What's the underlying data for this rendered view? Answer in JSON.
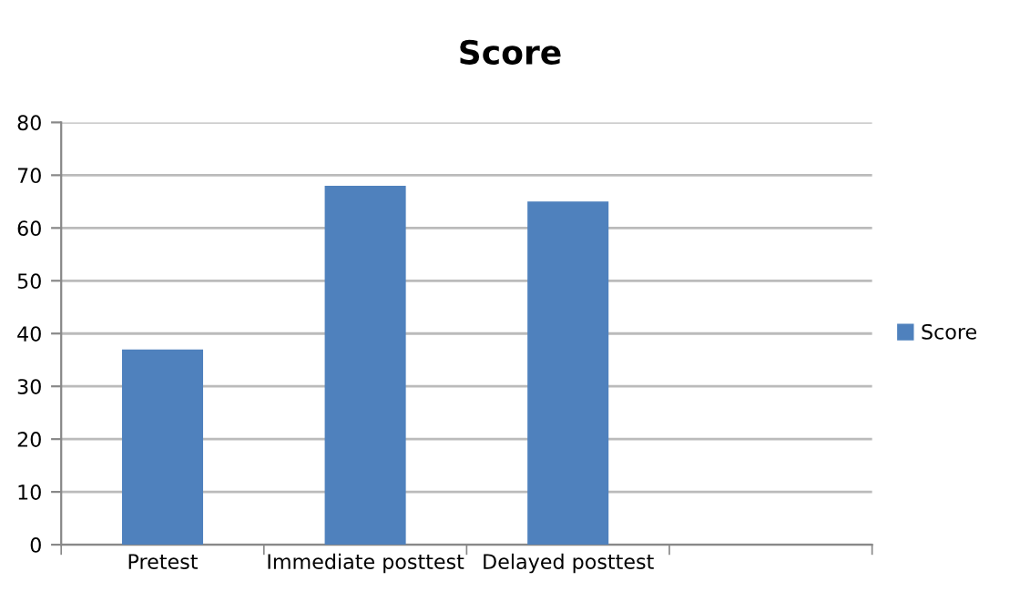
{
  "chart_data": {
    "type": "bar",
    "title": "Score",
    "categories": [
      "Pretest",
      "Immediate posttest",
      "Delayed posttest",
      null
    ],
    "series": [
      {
        "name": "Score",
        "color": "#4f81bd",
        "values": [
          37,
          68,
          65,
          null
        ]
      }
    ],
    "ylim": [
      0,
      80
    ],
    "yticks": [
      0,
      10,
      20,
      30,
      40,
      50,
      60,
      70,
      80
    ],
    "grid": "y",
    "legend": "right"
  }
}
